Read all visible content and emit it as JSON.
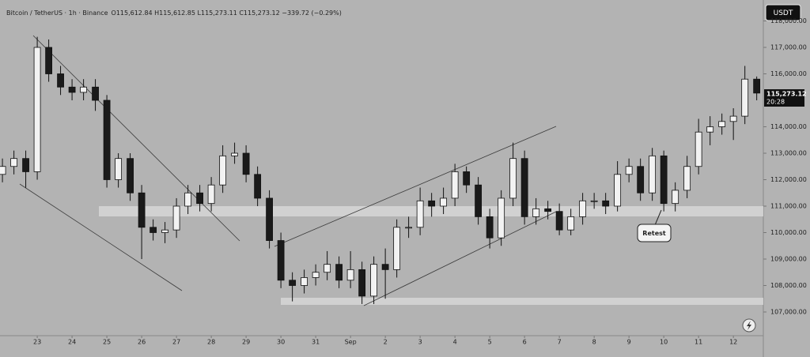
{
  "chart_data": {
    "type": "candlestick",
    "title": "Bitcoin / TetherUS · 1h · Binance",
    "subtitle": "O115,612.84 H115,612.85 L115,273.11 C115,273.12 −339.72 (−0.29%)",
    "currency": "USDT",
    "last_price_label": "115,273.12",
    "countdown": "20:28",
    "annotation": "Retest",
    "up_color": "#f2f2f2",
    "down_color": "#1a1a1a",
    "xlim": [
      -1.07,
      20.86
    ],
    "ylim": [
      106104,
      118791
    ],
    "yticks": [
      {
        "value": 107000,
        "label": "107,000.00"
      },
      {
        "value": 108000,
        "label": "108,000.00"
      },
      {
        "value": 109000,
        "label": "109,000.00"
      },
      {
        "value": 110000,
        "label": "110,000.00"
      },
      {
        "value": 111000,
        "label": "111,000.00"
      },
      {
        "value": 112000,
        "label": "112,000.00"
      },
      {
        "value": 113000,
        "label": "113,000.00"
      },
      {
        "value": 114000,
        "label": "114,000.00"
      },
      {
        "value": 116000,
        "label": "116,000.00"
      },
      {
        "value": 117000,
        "label": "117,000.00"
      },
      {
        "value": 118000,
        "label": "118,000.00"
      }
    ],
    "xticks": [
      {
        "value": 0,
        "label": "23"
      },
      {
        "value": 1,
        "label": "24"
      },
      {
        "value": 2,
        "label": "25"
      },
      {
        "value": 3,
        "label": "26"
      },
      {
        "value": 4,
        "label": "27"
      },
      {
        "value": 5,
        "label": "28"
      },
      {
        "value": 6,
        "label": "29"
      },
      {
        "value": 7,
        "label": "30"
      },
      {
        "value": 8,
        "label": "31"
      },
      {
        "value": 9,
        "label": "Sep"
      },
      {
        "value": 10,
        "label": "2"
      },
      {
        "value": 11,
        "label": "3"
      },
      {
        "value": 12,
        "label": "4"
      },
      {
        "value": 13,
        "label": "5"
      },
      {
        "value": 14,
        "label": "6"
      },
      {
        "value": 15,
        "label": "7"
      },
      {
        "value": 16,
        "label": "8"
      },
      {
        "value": 17,
        "label": "9"
      },
      {
        "value": 18,
        "label": "10"
      },
      {
        "value": 19,
        "label": "11"
      },
      {
        "value": 20,
        "label": "12"
      }
    ],
    "x": [
      -1,
      -0.67,
      -0.33,
      0,
      0.33,
      0.67,
      1,
      1.33,
      1.67,
      2,
      2.33,
      2.67,
      3,
      3.33,
      3.67,
      4,
      4.33,
      4.67,
      5,
      5.33,
      5.67,
      6,
      6.33,
      6.67,
      7,
      7.33,
      7.67,
      8,
      8.33,
      8.67,
      9,
      9.33,
      9.67,
      10,
      10.33,
      10.67,
      11,
      11.33,
      11.67,
      12,
      12.33,
      12.67,
      13,
      13.33,
      13.67,
      14,
      14.33,
      14.67,
      15,
      15.33,
      15.67,
      16,
      16.33,
      16.67,
      17,
      17.33,
      17.67,
      18,
      18.33,
      18.67,
      19,
      19.33,
      19.67,
      20,
      20.33,
      20.67
    ],
    "open": [
      112200,
      112500,
      112800,
      112300,
      117000,
      116000,
      115500,
      115300,
      115500,
      115000,
      112000,
      112800,
      111500,
      110200,
      110000,
      110100,
      111000,
      111500,
      111100,
      111800,
      112900,
      113000,
      112200,
      111300,
      109700,
      108200,
      108000,
      108300,
      108500,
      108800,
      108200,
      108600,
      107600,
      108800,
      108600,
      110200,
      110200,
      111200,
      111000,
      111300,
      112300,
      111800,
      110600,
      109800,
      111300,
      112800,
      110600,
      110900,
      110800,
      110100,
      110600,
      111200,
      111200,
      111000,
      112200,
      112500,
      111500,
      112900,
      111100,
      111600,
      112500,
      113800,
      114000,
      114200,
      114400,
      115800
    ],
    "high": [
      112800,
      113100,
      113100,
      117400,
      117300,
      116300,
      115800,
      115800,
      115800,
      115200,
      113000,
      113000,
      111800,
      110500,
      110400,
      111300,
      111800,
      111800,
      112100,
      113300,
      113400,
      113300,
      112500,
      111600,
      110000,
      108500,
      108600,
      108800,
      109300,
      109100,
      109300,
      108900,
      109100,
      109400,
      110500,
      110600,
      111700,
      111500,
      111700,
      112600,
      112500,
      112100,
      110900,
      111600,
      113400,
      113100,
      111300,
      111200,
      111100,
      110900,
      111500,
      111500,
      111500,
      112700,
      112800,
      112800,
      113200,
      113100,
      111900,
      112900,
      114300,
      114400,
      114500,
      114700,
      116300,
      115900
    ],
    "low": [
      111900,
      112200,
      111700,
      112000,
      115700,
      115200,
      115000,
      115000,
      114600,
      111700,
      111700,
      111200,
      109000,
      109700,
      109600,
      109800,
      110700,
      110800,
      110800,
      111500,
      112600,
      111900,
      111000,
      109400,
      107900,
      107400,
      107700,
      108000,
      108200,
      107900,
      107900,
      107300,
      107300,
      107500,
      108300,
      109800,
      109900,
      110600,
      110700,
      111000,
      111500,
      110300,
      109400,
      109500,
      111000,
      110300,
      110300,
      110500,
      109900,
      109900,
      110300,
      110900,
      110700,
      110800,
      111900,
      111200,
      111200,
      110800,
      110800,
      111300,
      112200,
      113300,
      113700,
      113500,
      114100,
      115000
    ],
    "close": [
      112500,
      112800,
      112300,
      117000,
      116000,
      115500,
      115300,
      115500,
      115000,
      112000,
      112800,
      111500,
      110200,
      110000,
      110100,
      111000,
      111500,
      111100,
      111800,
      112900,
      113000,
      112200,
      111300,
      109700,
      108200,
      108000,
      108300,
      108500,
      108800,
      108200,
      108600,
      107600,
      108800,
      108600,
      110200,
      110200,
      111200,
      111000,
      111300,
      112300,
      111800,
      110600,
      109800,
      111300,
      112800,
      110600,
      110900,
      110800,
      110100,
      110600,
      111200,
      111200,
      111000,
      112200,
      112500,
      111500,
      112900,
      111100,
      111600,
      112500,
      113800,
      114000,
      114200,
      114400,
      115800,
      115273.12
    ]
  }
}
